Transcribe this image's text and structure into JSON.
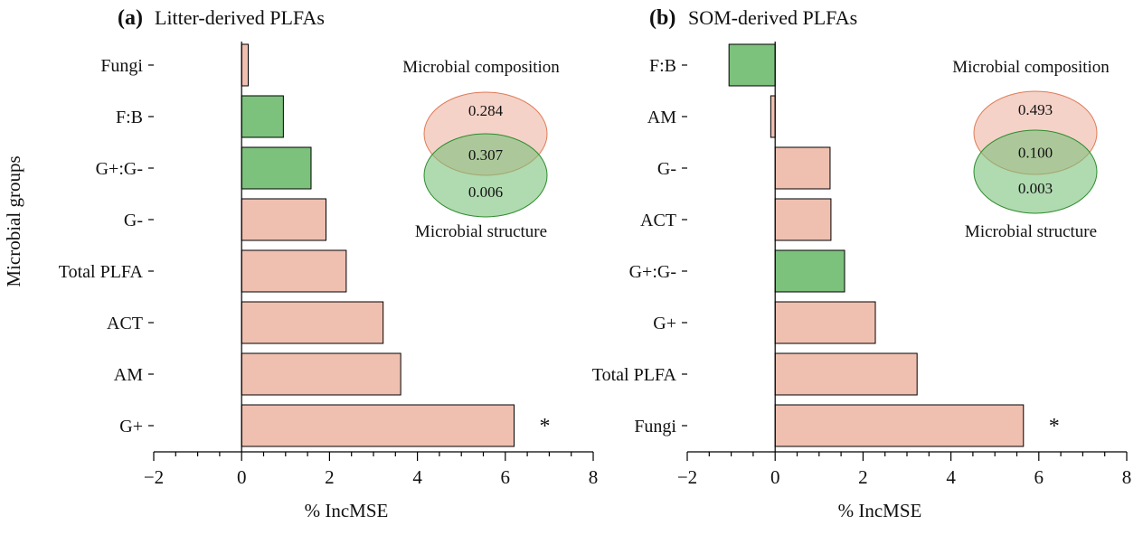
{
  "figure": {
    "y_axis_label": "Microbial groups",
    "bar_stroke": "#000000",
    "composition_color": "#efbfb0",
    "structure_color": "#7cc17c"
  },
  "chart_data": [
    {
      "type": "bar",
      "orientation": "horizontal",
      "panel_letter": "(a)",
      "title": "Litter-derived PLFAs",
      "xlabel": "% IncMSE",
      "ylabel": "Microbial groups",
      "xlim": [
        -2,
        8
      ],
      "xticks": [
        -2,
        0,
        2,
        4,
        6,
        8
      ],
      "xtick_labels": [
        "−2",
        "0",
        "2",
        "4",
        "6",
        "8"
      ],
      "categories": [
        "Fungi",
        "F:B",
        "G+:G-",
        "G-",
        "Total PLFA",
        "ACT",
        "AM",
        "G+"
      ],
      "values": [
        0.15,
        0.95,
        1.58,
        1.92,
        2.38,
        3.22,
        3.62,
        6.2
      ],
      "group": [
        "composition",
        "structure",
        "structure",
        "composition",
        "composition",
        "composition",
        "composition",
        "composition"
      ],
      "significance": [
        "",
        "",
        "",
        "",
        "",
        "",
        "",
        "*"
      ],
      "grid": false,
      "venn": {
        "top_label": "Microbial composition",
        "bottom_label": "Microbial structure",
        "composition_only": "0.284",
        "shared": "0.307",
        "structure_only": "0.006",
        "composition_color": "#efbfb0",
        "structure_color": "#7cc17c"
      }
    },
    {
      "type": "bar",
      "orientation": "horizontal",
      "panel_letter": "(b)",
      "title": "SOM-derived PLFAs",
      "xlabel": "% IncMSE",
      "ylabel": "",
      "xlim": [
        -2,
        8
      ],
      "xticks": [
        -2,
        0,
        2,
        4,
        6,
        8
      ],
      "xtick_labels": [
        "−2",
        "0",
        "2",
        "4",
        "6",
        "8"
      ],
      "categories": [
        "F:B",
        "AM",
        "G-",
        "ACT",
        "G+:G-",
        "G+",
        "Total PLFA",
        "Fungi"
      ],
      "values": [
        -1.05,
        -0.1,
        1.25,
        1.27,
        1.58,
        2.28,
        3.23,
        5.65
      ],
      "group": [
        "structure",
        "composition",
        "composition",
        "composition",
        "structure",
        "composition",
        "composition",
        "composition"
      ],
      "significance": [
        "",
        "",
        "",
        "",
        "",
        "",
        "",
        "*"
      ],
      "grid": false,
      "venn": {
        "top_label": "Microbial composition",
        "bottom_label": "Microbial structure",
        "composition_only": "0.493",
        "shared": "0.100",
        "structure_only": "0.003",
        "composition_color": "#efbfb0",
        "structure_color": "#7cc17c"
      }
    }
  ]
}
